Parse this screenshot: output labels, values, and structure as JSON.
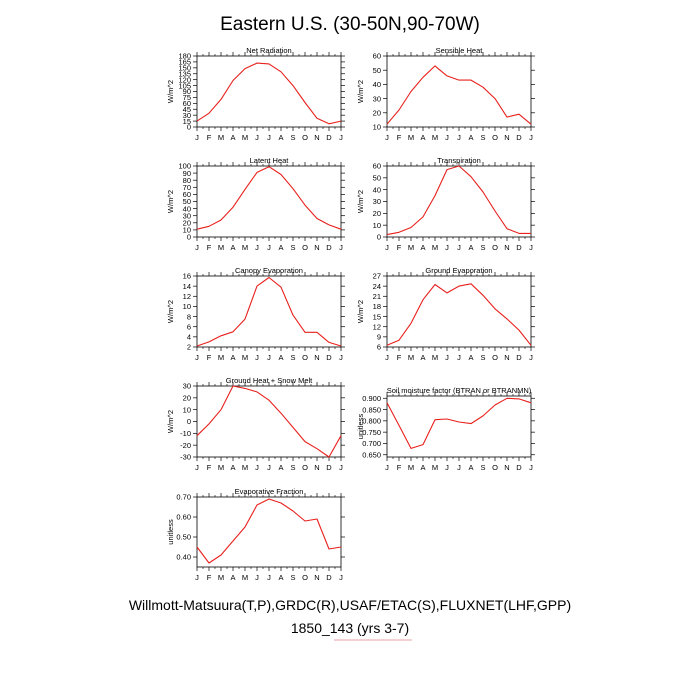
{
  "title": "Eastern U.S. (30-50N,90-70W)",
  "footer": {
    "line1": "Willmott-Matsuura(T,P),GRDC(R),USAF/ETAC(S),FLUXNET(LHF,GPP)",
    "line2": "1850_143 (yrs 3-7)",
    "underline_color": "#e8a0a0"
  },
  "colors": {
    "line": "#e8201c",
    "axis": "#000000"
  },
  "chart_data": [
    {
      "type": "line",
      "title": "Net Radiation",
      "ylabel": "W/m^2",
      "categories": [
        "J",
        "F",
        "M",
        "A",
        "M",
        "J",
        "J",
        "A",
        "S",
        "O",
        "N",
        "D",
        "J"
      ],
      "ylim": [
        0,
        180
      ],
      "yticks": [
        "0",
        "15",
        "30",
        "45",
        "60",
        "75",
        "90",
        "105",
        "120",
        "135",
        "150",
        "165",
        "180"
      ],
      "values": [
        15,
        35,
        70,
        118,
        148,
        162,
        160,
        140,
        105,
        62,
        22,
        8,
        15
      ]
    },
    {
      "type": "line",
      "title": "Sensible Heat",
      "ylabel": "W/m^2",
      "categories": [
        "J",
        "F",
        "M",
        "A",
        "M",
        "J",
        "J",
        "A",
        "S",
        "O",
        "N",
        "D",
        "J"
      ],
      "ylim": [
        10,
        60
      ],
      "yticks": [
        "10",
        "20",
        "30",
        "40",
        "50",
        "60"
      ],
      "values": [
        12,
        22,
        35,
        45,
        53,
        46,
        43,
        43,
        38,
        30,
        17,
        19,
        12
      ]
    },
    {
      "type": "line",
      "title": "Latent Heat",
      "ylabel": "W/m^2",
      "categories": [
        "J",
        "F",
        "M",
        "A",
        "M",
        "J",
        "J",
        "A",
        "S",
        "O",
        "N",
        "D",
        "J"
      ],
      "ylim": [
        0,
        100
      ],
      "yticks": [
        "0",
        "10",
        "20",
        "30",
        "40",
        "50",
        "60",
        "70",
        "80",
        "90",
        "100"
      ],
      "values": [
        11,
        15,
        24,
        42,
        67,
        91,
        99,
        88,
        68,
        45,
        26,
        17,
        11
      ]
    },
    {
      "type": "line",
      "title": "Transpiration",
      "ylabel": "W/m^2",
      "categories": [
        "J",
        "F",
        "M",
        "A",
        "M",
        "J",
        "J",
        "A",
        "S",
        "O",
        "N",
        "D",
        "J"
      ],
      "ylim": [
        0,
        60
      ],
      "yticks": [
        "0",
        "10",
        "20",
        "30",
        "40",
        "50",
        "60"
      ],
      "values": [
        2,
        4,
        8,
        17,
        35,
        57,
        60,
        51,
        38,
        22,
        7,
        3,
        3
      ]
    },
    {
      "type": "line",
      "title": "Canopy Evaporation",
      "ylabel": "W/m^2",
      "categories": [
        "J",
        "F",
        "M",
        "A",
        "M",
        "J",
        "J",
        "A",
        "S",
        "O",
        "N",
        "D",
        "J"
      ],
      "ylim": [
        2,
        16
      ],
      "yticks": [
        "2",
        "4",
        "6",
        "8",
        "10",
        "12",
        "14",
        "16"
      ],
      "values": [
        2.2,
        3.0,
        4.2,
        5.0,
        7.5,
        14.0,
        15.7,
        13.8,
        8.3,
        4.9,
        4.9,
        2.9,
        2.2
      ]
    },
    {
      "type": "line",
      "title": "Ground Evaporation",
      "ylabel": "W/m^2",
      "categories": [
        "J",
        "F",
        "M",
        "A",
        "M",
        "J",
        "J",
        "A",
        "S",
        "O",
        "N",
        "D",
        "J"
      ],
      "ylim": [
        6,
        27
      ],
      "yticks": [
        "6",
        "9",
        "12",
        "15",
        "18",
        "21",
        "24",
        "27"
      ],
      "values": [
        6.5,
        8.0,
        13.0,
        20.0,
        24.5,
        22.0,
        24.0,
        24.7,
        21.3,
        17.3,
        14.3,
        11.0,
        6.5
      ]
    },
    {
      "type": "line",
      "title": "Ground Heat + Snow Melt",
      "ylabel": "W/m^2",
      "categories": [
        "J",
        "F",
        "M",
        "A",
        "M",
        "J",
        "J",
        "A",
        "S",
        "O",
        "N",
        "D",
        "J"
      ],
      "ylim": [
        -30,
        30
      ],
      "yticks": [
        "-30",
        "-20",
        "-10",
        "0",
        "10",
        "20",
        "30"
      ],
      "values": [
        -12,
        -2,
        10,
        30,
        28,
        25,
        18,
        7,
        -5,
        -17,
        -23,
        -30,
        -12
      ]
    },
    {
      "type": "line",
      "title": "Soil moisture factor (BTRAN or BTRANMN)",
      "ylabel": "unitless",
      "categories": [
        "J",
        "F",
        "M",
        "A",
        "M",
        "J",
        "J",
        "A",
        "S",
        "O",
        "N",
        "D",
        "J"
      ],
      "ylim": [
        0.64,
        0.91
      ],
      "yticks": [
        "0.650",
        "0.700",
        "0.750",
        "0.800",
        "0.850",
        "0.900"
      ],
      "ytick_values": [
        0.65,
        0.7,
        0.75,
        0.8,
        0.85,
        0.9
      ],
      "values": [
        0.88,
        0.78,
        0.678,
        0.695,
        0.805,
        0.808,
        0.795,
        0.788,
        0.822,
        0.87,
        0.9,
        0.897,
        0.88
      ]
    },
    {
      "type": "line",
      "title": "Evaporative Fraction",
      "ylabel": "unitless",
      "categories": [
        "J",
        "F",
        "M",
        "A",
        "M",
        "J",
        "J",
        "A",
        "S",
        "O",
        "N",
        "D",
        "J"
      ],
      "ylim": [
        0.35,
        0.7
      ],
      "yticks": [
        "0.40",
        "0.50",
        "0.60",
        "0.70"
      ],
      "ytick_values": [
        0.4,
        0.5,
        0.6,
        0.7
      ],
      "values": [
        0.45,
        0.37,
        0.41,
        0.48,
        0.55,
        0.66,
        0.69,
        0.67,
        0.63,
        0.58,
        0.59,
        0.44,
        0.45
      ]
    }
  ]
}
